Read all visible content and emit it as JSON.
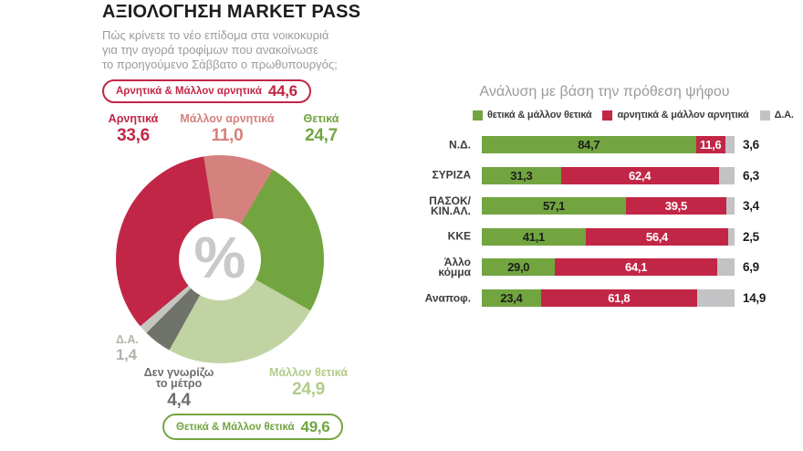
{
  "left": {
    "title": "ΑΞΙΟΛΟΓΗΣΗ MARKET PASS",
    "subtitle": "Πώς κρίνετε το νέο επίδομα στα νοικοκυριά\nγια την αγορά τροφίμων που ανακοίνωσε\nτο προηγούμενο Σάββατο ο πρωθυπουργός;",
    "negative_badge": {
      "label": "Αρνητικά & Μάλλον αρνητικά",
      "value": "44,6"
    },
    "positive_badge": {
      "label": "Θετικά & Μάλλον θετικά",
      "value": "49,6"
    },
    "center_symbol": "%"
  },
  "chart_data": [
    {
      "type": "pie",
      "subtype": "donut",
      "unit": "%",
      "start_angle_deg": -9,
      "slices": [
        {
          "label": "Μάλλον αρνητικά",
          "value": 11.0,
          "display": "11,0",
          "color": "#d5817d"
        },
        {
          "label": "Θετικά",
          "value": 24.7,
          "display": "24,7",
          "color": "#72a540"
        },
        {
          "label": "Μάλλον θετικά",
          "value": 24.9,
          "display": "24,9",
          "color": "#c1d3a3"
        },
        {
          "label": "Δεν γνωρίζω\nτο μέτρο",
          "value": 4.4,
          "display": "4,4",
          "color": "#70736a"
        },
        {
          "label": "Δ.Α.",
          "value": 1.4,
          "display": "1,4",
          "color": "#c4c6c0"
        },
        {
          "label": "Αρνητικά",
          "value": 33.6,
          "display": "33,6",
          "color": "#c22646"
        }
      ],
      "aggregates": [
        {
          "label": "Αρνητικά & Μάλλον αρνητικά",
          "value": 44.6
        },
        {
          "label": "Θετικά & Μάλλον θετικά",
          "value": 49.6
        }
      ]
    },
    {
      "type": "bar",
      "orientation": "horizontal-stacked",
      "title": "Ανάλυση με βάση την πρόθεση ψήφου",
      "xlim": [
        0,
        100
      ],
      "categories": [
        "Ν.Δ.",
        "ΣΥΡΙΖΑ",
        "ΠΑΣΟΚ/\nΚΙΝ.ΑΛ.",
        "ΚΚΕ",
        "Άλλο\nκόμμα",
        "Αναποφ."
      ],
      "series": [
        {
          "name": "θετικά & μάλλον θετικά",
          "color": "#72a540",
          "label_color": "#1d1d1b",
          "value_position": "inside",
          "values": [
            84.7,
            31.3,
            57.1,
            41.1,
            29.0,
            23.4
          ],
          "displays": [
            "84,7",
            "31,3",
            "57,1",
            "41,1",
            "29,0",
            "23,4"
          ]
        },
        {
          "name": "αρνητικά & μάλλον αρνητικά",
          "color": "#c22646",
          "label_color": "#ffffff",
          "value_position": "inside",
          "values": [
            11.6,
            62.4,
            39.5,
            56.4,
            64.1,
            61.8
          ],
          "displays": [
            "11,6",
            "62,4",
            "39,5",
            "56,4",
            "64,1",
            "61,8"
          ]
        },
        {
          "name": "Δ.Α.",
          "color": "#c3c3c5",
          "label_color": "#1d1d1b",
          "value_position": "outside",
          "values": [
            3.6,
            6.3,
            3.4,
            2.5,
            6.9,
            14.9
          ],
          "displays": [
            "3,6",
            "6,3",
            "3,4",
            "2,5",
            "6,9",
            "14,9"
          ]
        }
      ]
    }
  ]
}
